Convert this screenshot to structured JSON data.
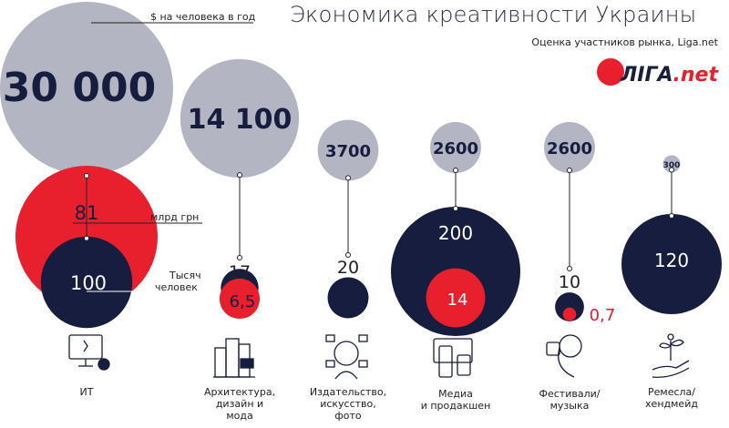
{
  "title": "Экономика креативности Украины",
  "subtitle": "Оценка участников рынка, Liga.net",
  "logo": {
    "main": "ЛIГА",
    "suffix": ".net"
  },
  "colors": {
    "grey": "#b3b5c2",
    "navy": "#171d3f",
    "red": "#e8202e",
    "text": "#222222"
  },
  "chart_data": {
    "type": "bubble",
    "legend_labels": {
      "per_person": "$ на человека в год",
      "billion_uah": "млрд грн",
      "thousand_people_line1": "Тысяч",
      "thousand_people_line2": "человек"
    },
    "categories": [
      {
        "name_lines": [
          "ИТ"
        ],
        "icon": "computer-gear-icon",
        "per_person": 30000,
        "per_person_label": "30 000",
        "billion_uah": 81,
        "billion_uah_label": "81",
        "thousand_people": 100,
        "thousand_people_label": "100"
      },
      {
        "name_lines": [
          "Архитектура,",
          "дизайн и",
          "мода"
        ],
        "icon": "buildings-icon",
        "per_person": 14100,
        "per_person_label": "14 100",
        "billion_uah": 6.5,
        "billion_uah_label": "6,5",
        "thousand_people": 17,
        "thousand_people_label": "17"
      },
      {
        "name_lines": [
          "Издательство,",
          "искусство,",
          "фото"
        ],
        "icon": "creative-head-icon",
        "per_person": 3700,
        "per_person_label": "3700",
        "billion_uah": null,
        "billion_uah_label": "",
        "thousand_people": 20,
        "thousand_people_label": "20"
      },
      {
        "name_lines": [
          "Медиа",
          "и продакшен"
        ],
        "icon": "devices-icon",
        "per_person": 2600,
        "per_person_label": "2600",
        "billion_uah": 14,
        "billion_uah_label": "14",
        "thousand_people": 200,
        "thousand_people_label": "200"
      },
      {
        "name_lines": [
          "Фестивали/",
          "музыка"
        ],
        "icon": "music-listener-icon",
        "per_person": 2600,
        "per_person_label": "2600",
        "billion_uah": 0.7,
        "billion_uah_label": "0,7",
        "thousand_people": 10,
        "thousand_people_label": "10"
      },
      {
        "name_lines": [
          "Ремесла/",
          "хендмейд"
        ],
        "icon": "hand-plant-icon",
        "per_person": 300,
        "per_person_label": "300",
        "billion_uah": null,
        "billion_uah_label": "",
        "thousand_people": 120,
        "thousand_people_label": "120"
      }
    ]
  }
}
